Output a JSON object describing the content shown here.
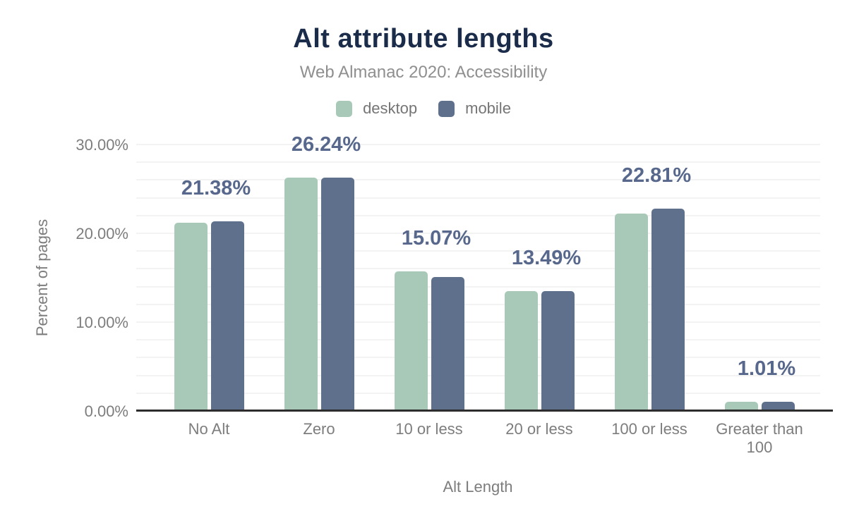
{
  "chart_data": {
    "type": "bar",
    "title": "Alt attribute lengths",
    "subtitle": "Web Almanac 2020: Accessibility",
    "xlabel": "Alt Length",
    "ylabel": "Percent of pages",
    "categories": [
      "No Alt",
      "Zero",
      "10 or less",
      "20 or less",
      "100 or less",
      "Greater than 100"
    ],
    "series": [
      {
        "name": "desktop",
        "color": "#a8c9b8",
        "values": [
          21.2,
          26.3,
          15.7,
          13.5,
          22.2,
          1.0
        ]
      },
      {
        "name": "mobile",
        "color": "#5f708c",
        "values": [
          21.38,
          26.24,
          15.07,
          13.49,
          22.81,
          1.01
        ]
      }
    ],
    "data_labels": [
      "21.38%",
      "26.24%",
      "15.07%",
      "13.49%",
      "22.81%",
      "1.01%"
    ],
    "labeled_series": "mobile",
    "ylim": [
      0,
      30
    ],
    "yticks": [
      0,
      10,
      20,
      30
    ],
    "ytick_labels": [
      "0.00%",
      "10.00%",
      "20.00%",
      "30.00%"
    ],
    "minor_grid_step": 2,
    "grid": true,
    "legend_position": "top"
  },
  "colors": {
    "title": "#1b2b4a",
    "subtitle": "#8f8f8f",
    "axis_text": "#7d7d7d",
    "data_label": "#57688c",
    "gridline": "#f3f3f3",
    "baseline": "#2d2d2d",
    "desktop": "#a8c9b8",
    "mobile": "#5f708c",
    "background": "#ffffff"
  }
}
